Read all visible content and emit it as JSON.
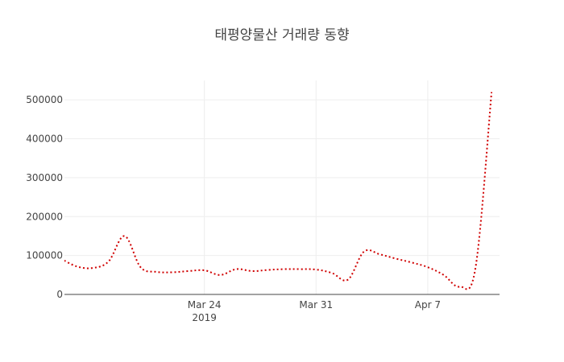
{
  "chart_data": {
    "type": "line",
    "title": "태평양물산 거래량 동향",
    "xlabel": "",
    "ylabel": "",
    "x_range": [
      "2019-03-16",
      "2019-04-12"
    ],
    "ylim": [
      0,
      550000
    ],
    "y_ticks": [
      0,
      100000,
      200000,
      300000,
      400000,
      500000
    ],
    "y_tick_labels": [
      "0",
      "100000",
      "200000",
      "300000",
      "400000",
      "500000"
    ],
    "x_ticks": [
      {
        "date": "2019-03-24",
        "label": "Mar 24",
        "sublabel": "2019"
      },
      {
        "date": "2019-03-31",
        "label": "Mar 31",
        "sublabel": ""
      },
      {
        "date": "2019-04-07",
        "label": "Apr 7",
        "sublabel": ""
      }
    ],
    "grid": true,
    "line_color": "#d00000",
    "line_style": "dotted",
    "series": [
      {
        "x": [
          "2019-03-15",
          "2019-03-16",
          "2019-03-17",
          "2019-03-18",
          "2019-03-19",
          "2019-03-20",
          "2019-03-21",
          "2019-03-22",
          "2019-03-23",
          "2019-03-24",
          "2019-03-25",
          "2019-03-26",
          "2019-03-27",
          "2019-03-28",
          "2019-03-29",
          "2019-03-30",
          "2019-03-31",
          "2019-04-01",
          "2019-04-02",
          "2019-04-03",
          "2019-04-04",
          "2019-04-05",
          "2019-04-06",
          "2019-04-07",
          "2019-04-08",
          "2019-04-09",
          "2019-04-10",
          "2019-04-11"
        ],
        "values": [
          92000,
          72000,
          68000,
          85000,
          150000,
          70000,
          58000,
          57000,
          60000,
          62000,
          50000,
          65000,
          60000,
          63000,
          65000,
          65000,
          64000,
          55000,
          38000,
          110000,
          103000,
          92000,
          82000,
          70000,
          50000,
          20000,
          70000,
          520000
        ]
      }
    ]
  }
}
